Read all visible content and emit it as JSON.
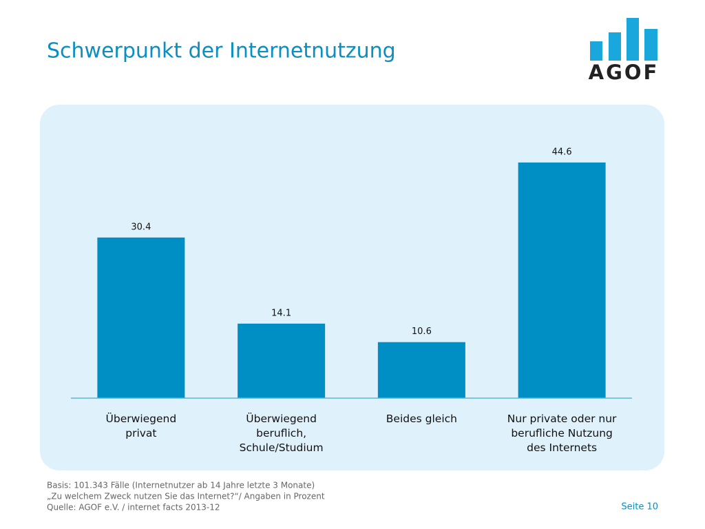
{
  "title": "Schwerpunkt der Internetnutzung",
  "logo": "AGOF",
  "chart_data": {
    "type": "bar",
    "categories": [
      "Überwiegend\nprivat",
      "Überwiegend\nberuflich,\nSchule/Studium",
      "Beides gleich",
      "Nur private oder nur\nberufliche Nutzung\ndes Internets"
    ],
    "values": [
      30.4,
      14.1,
      10.6,
      44.6
    ],
    "color": "#008fc5",
    "ylim": [
      0,
      50
    ]
  },
  "footer": {
    "notes": [
      "Basis: 101.343 Fälle (Internetnutzer ab 14 Jahre letzte 3 Monate)",
      "„Zu welchem Zweck nutzen Sie das Internet?“/ Angaben in Prozent",
      "Quelle: AGOF e.V. / internet facts 2013-12"
    ],
    "page": "Seite 10"
  }
}
